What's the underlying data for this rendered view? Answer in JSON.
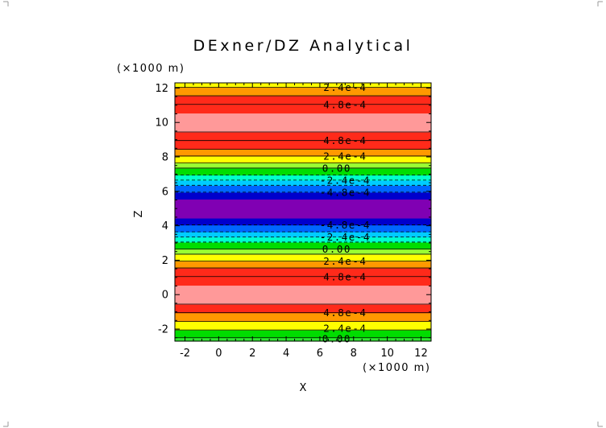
{
  "chart_data": {
    "type": "heatmap",
    "title": "DExner/DZ Analytical",
    "xlabel": "X",
    "ylabel": "Z",
    "x_units": "(×1000 m)",
    "y_units": "(×1000 m)",
    "xlim": [
      -2.6,
      12.6
    ],
    "ylim": [
      -2.7,
      12.3
    ],
    "xticks": [
      "-2",
      "0",
      "2",
      "4",
      "6",
      "8",
      "10",
      "12"
    ],
    "xtick_values": [
      -2,
      0,
      2,
      4,
      6,
      8,
      10,
      12
    ],
    "yticks": [
      "-2",
      "0",
      "2",
      "4",
      "6",
      "8",
      "10",
      "12"
    ],
    "ytick_values": [
      -2,
      0,
      2,
      4,
      6,
      8,
      10,
      12
    ],
    "field": "constant in X; periodic in Z with period 10 (x1000 m); maximum near Z=0 and Z=10, minimum near Z=5",
    "bands": [
      {
        "z0": -2.7,
        "z1": -2.5,
        "color": "#33e533"
      },
      {
        "z0": -2.5,
        "z1": -2.05,
        "color": "#00dd00"
      },
      {
        "z0": -2.05,
        "z1": -1.55,
        "color": "#ffff00"
      },
      {
        "z0": -1.55,
        "z1": -1.05,
        "color": "#ff9900"
      },
      {
        "z0": -1.05,
        "z1": -0.55,
        "color": "#ff2a1a"
      },
      {
        "z0": -0.55,
        "z1": 0.55,
        "color": "#ff9999"
      },
      {
        "z0": 0.55,
        "z1": 1.05,
        "color": "#ff2a1a"
      },
      {
        "z0": 1.05,
        "z1": 1.55,
        "color": "#ff2a1a"
      },
      {
        "z0": 1.55,
        "z1": 1.95,
        "color": "#ff9900"
      },
      {
        "z0": 1.95,
        "z1": 2.35,
        "color": "#ffff00"
      },
      {
        "z0": 2.35,
        "z1": 2.65,
        "color": "#99ff33"
      },
      {
        "z0": 2.65,
        "z1": 3.05,
        "color": "#00dd00"
      },
      {
        "z0": 3.05,
        "z1": 3.35,
        "color": "#00ffcc"
      },
      {
        "z0": 3.35,
        "z1": 3.65,
        "color": "#00ccff"
      },
      {
        "z0": 3.65,
        "z1": 4.05,
        "color": "#0066ff"
      },
      {
        "z0": 4.05,
        "z1": 4.45,
        "color": "#0000cc"
      },
      {
        "z0": 4.45,
        "z1": 5.55,
        "color": "#8000b3"
      },
      {
        "z0": 5.55,
        "z1": 5.95,
        "color": "#0000cc"
      },
      {
        "z0": 5.95,
        "z1": 6.35,
        "color": "#0066ff"
      },
      {
        "z0": 6.35,
        "z1": 6.65,
        "color": "#00ccff"
      },
      {
        "z0": 6.65,
        "z1": 6.95,
        "color": "#00ffcc"
      },
      {
        "z0": 6.95,
        "z1": 7.35,
        "color": "#00dd00"
      },
      {
        "z0": 7.35,
        "z1": 7.65,
        "color": "#99ff33"
      },
      {
        "z0": 7.65,
        "z1": 8.05,
        "color": "#ffff00"
      },
      {
        "z0": 8.05,
        "z1": 8.45,
        "color": "#ff9900"
      },
      {
        "z0": 8.45,
        "z1": 8.95,
        "color": "#ff2a1a"
      },
      {
        "z0": 8.95,
        "z1": 9.45,
        "color": "#ff2a1a"
      },
      {
        "z0": 9.45,
        "z1": 10.55,
        "color": "#ff9999"
      },
      {
        "z0": 10.55,
        "z1": 11.05,
        "color": "#ff2a1a"
      },
      {
        "z0": 11.05,
        "z1": 11.55,
        "color": "#ff2a1a"
      },
      {
        "z0": 11.55,
        "z1": 12.05,
        "color": "#ff9900"
      },
      {
        "z0": 12.05,
        "z1": 12.3,
        "color": "#ffff00"
      }
    ],
    "contour_lines": [
      {
        "z": 12.05,
        "style": "solid"
      },
      {
        "z": 11.55,
        "style": "solid"
      },
      {
        "z": 11.05,
        "style": "solid"
      },
      {
        "z": 9.45,
        "style": "solid"
      },
      {
        "z": 8.95,
        "style": "solid"
      },
      {
        "z": 8.45,
        "style": "solid"
      },
      {
        "z": 8.05,
        "style": "solid"
      },
      {
        "z": 7.65,
        "style": "solid"
      },
      {
        "z": 7.35,
        "style": "solid"
      },
      {
        "z": 6.95,
        "style": "dashed"
      },
      {
        "z": 6.65,
        "style": "dashed"
      },
      {
        "z": 6.35,
        "style": "dashed"
      },
      {
        "z": 5.95,
        "style": "dashed"
      },
      {
        "z": 4.05,
        "style": "dashed"
      },
      {
        "z": 3.65,
        "style": "dashed"
      },
      {
        "z": 3.35,
        "style": "dashed"
      },
      {
        "z": 3.05,
        "style": "dashed"
      },
      {
        "z": 2.65,
        "style": "solid"
      },
      {
        "z": 2.35,
        "style": "solid"
      },
      {
        "z": 1.95,
        "style": "solid"
      },
      {
        "z": 1.55,
        "style": "solid"
      },
      {
        "z": 1.05,
        "style": "solid"
      },
      {
        "z": -0.55,
        "style": "solid"
      },
      {
        "z": -1.05,
        "style": "solid"
      },
      {
        "z": -1.55,
        "style": "solid"
      },
      {
        "z": -2.05,
        "style": "solid"
      },
      {
        "z": -2.5,
        "style": "solid"
      }
    ],
    "contour_labels": [
      {
        "text": "2.4e-4",
        "x": 7.5,
        "z": 12.05
      },
      {
        "text": "4.8e-4",
        "x": 7.5,
        "z": 11.05
      },
      {
        "text": "4.8e-4",
        "x": 7.5,
        "z": 8.95
      },
      {
        "text": "2.4e-4",
        "x": 7.5,
        "z": 8.05
      },
      {
        "text": "0.00",
        "x": 7.0,
        "z": 7.35
      },
      {
        "text": "-2.4e-4",
        "x": 7.5,
        "z": 6.65
      },
      {
        "text": "-4.8e-4",
        "x": 7.5,
        "z": 5.95
      },
      {
        "text": "-4.8e-4",
        "x": 7.5,
        "z": 4.05
      },
      {
        "text": "-2.4e-4",
        "x": 7.5,
        "z": 3.35
      },
      {
        "text": "0.00",
        "x": 7.0,
        "z": 2.65
      },
      {
        "text": "2.4e-4",
        "x": 7.5,
        "z": 1.95
      },
      {
        "text": "4.8e-4",
        "x": 7.5,
        "z": 1.05
      },
      {
        "text": "4.8e-4",
        "x": 7.5,
        "z": -1.05
      },
      {
        "text": "2.4e-4",
        "x": 7.5,
        "z": -1.95
      },
      {
        "text": "0.00",
        "x": 7.0,
        "z": -2.55
      }
    ],
    "grid": false
  }
}
